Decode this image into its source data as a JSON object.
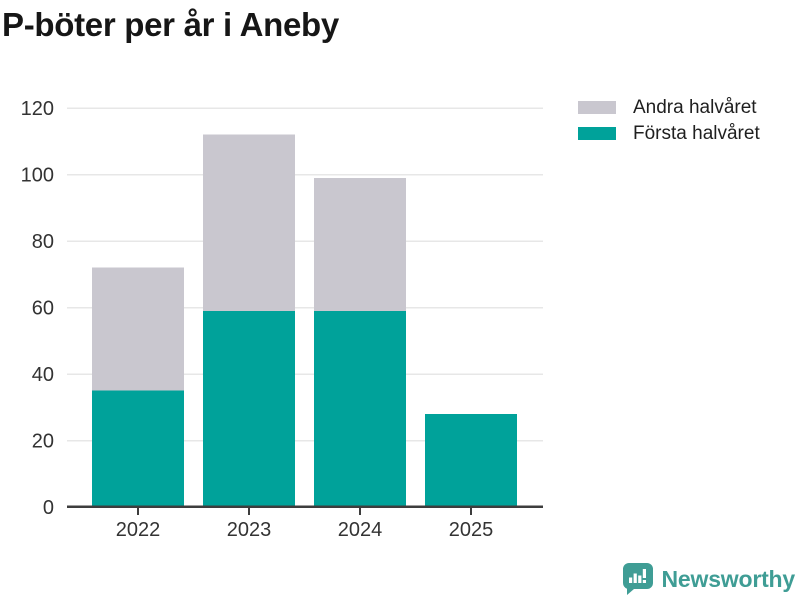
{
  "title": "P-böter per år i Aneby",
  "legend": [
    {
      "label": "Andra halvåret",
      "color": "#C9C7CF"
    },
    {
      "label": "Första halvåret",
      "color": "#00A29A"
    }
  ],
  "chart_data": {
    "type": "bar",
    "stacked": true,
    "title": "P-böter per år i Aneby",
    "categories": [
      "2022",
      "2023",
      "2024",
      "2025"
    ],
    "series": [
      {
        "name": "Första halvåret",
        "color": "#00A29A",
        "values": [
          35,
          59,
          59,
          28
        ]
      },
      {
        "name": "Andra halvåret",
        "color": "#C9C7CF",
        "values": [
          37,
          53,
          40,
          0
        ]
      }
    ],
    "totals": [
      72,
      112,
      99,
      28
    ],
    "xlabel": "",
    "ylabel": "",
    "ylim": [
      0,
      120
    ],
    "yticks": [
      0,
      20,
      40,
      60,
      80,
      100,
      120
    ],
    "grid": true,
    "legend_position": "top-right"
  },
  "footer": {
    "brand": "Newsworthy",
    "brand_color": "#3F9D95"
  },
  "colors": {
    "grid": "#E7E7E7",
    "axis": "#3D3D3D",
    "tick_text": "#333333",
    "title_text": "#161616"
  }
}
